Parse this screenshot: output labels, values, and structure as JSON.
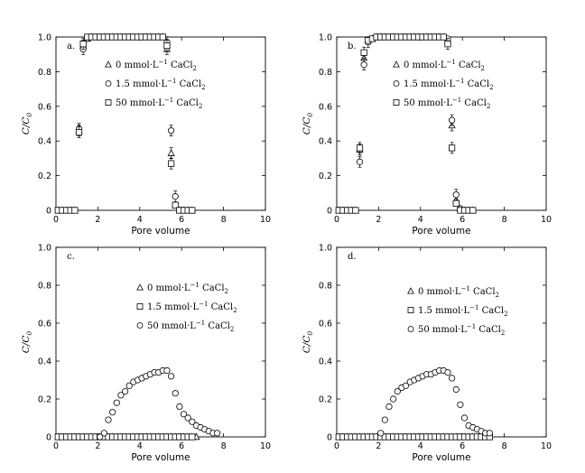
{
  "chart_data": [
    {
      "type": "scatter",
      "panel_label": "a.",
      "xlabel": "Pore volume",
      "ylabel": "C/C0",
      "ylabel_main": "C/C",
      "ylabel_sub": "0",
      "xlim": [
        0,
        10
      ],
      "ylim": [
        0,
        1.0
      ],
      "x_ticks": [
        0,
        2,
        4,
        6,
        8,
        10
      ],
      "y_ticks": [
        0,
        0.2,
        0.4,
        0.6,
        0.8,
        1.0
      ],
      "x_tick_labels": [
        "0",
        "2",
        "4",
        "6",
        "8",
        "10"
      ],
      "y_tick_labels": [
        "0",
        "0.2",
        "0.4",
        "0.6",
        "0.8",
        "1.0"
      ],
      "legend_position": "right-middle",
      "series": [
        {
          "name": "0 mmol·L⁻¹ CaCl₂",
          "legend_parts": [
            "0 mmol·L",
            "−1",
            " CaCl",
            "2"
          ],
          "marker": "triangle",
          "x": [
            0.1,
            0.3,
            0.5,
            0.7,
            0.9,
            1.1,
            1.3,
            1.5,
            1.7,
            1.9,
            2.1,
            2.3,
            2.5,
            2.7,
            2.9,
            3.1,
            3.3,
            3.5,
            3.7,
            3.9,
            4.1,
            4.3,
            4.5,
            4.7,
            4.9,
            5.1,
            5.3,
            5.5,
            5.7,
            5.9,
            6.1,
            6.3,
            6.5
          ],
          "y": [
            0,
            0,
            0,
            0,
            0,
            0.46,
            0.95,
            0.99,
            1.0,
            1.0,
            1.0,
            1.0,
            1.0,
            1.0,
            1.0,
            1.0,
            1.0,
            1.0,
            1.0,
            1.0,
            1.0,
            1.0,
            1.0,
            1.0,
            1.0,
            1.0,
            0.93,
            0.33,
            0.03,
            0,
            0,
            0,
            0
          ]
        },
        {
          "name": "1.5 mmol·L⁻¹ CaCl₂",
          "legend_parts": [
            "1.5 mmol·L",
            "−1",
            " CaCl",
            "2"
          ],
          "marker": "circle",
          "x": [
            0.1,
            0.3,
            0.5,
            0.7,
            0.9,
            1.1,
            1.3,
            1.5,
            1.7,
            1.9,
            2.1,
            2.3,
            2.5,
            2.7,
            2.9,
            3.1,
            3.3,
            3.5,
            3.7,
            3.9,
            4.1,
            4.3,
            4.5,
            4.7,
            4.9,
            5.1,
            5.3,
            5.5,
            5.7,
            5.9,
            6.1,
            6.3,
            6.5
          ],
          "y": [
            0,
            0,
            0,
            0,
            0,
            0.47,
            0.93,
            0.99,
            1.0,
            1.0,
            1.0,
            1.0,
            1.0,
            1.0,
            1.0,
            1.0,
            1.0,
            1.0,
            1.0,
            1.0,
            1.0,
            1.0,
            1.0,
            1.0,
            1.0,
            1.0,
            0.97,
            0.46,
            0.08,
            0,
            0,
            0,
            0
          ]
        },
        {
          "name": "50 mmol·L⁻¹ CaCl₂",
          "legend_parts": [
            "50 mmol·L",
            "−1",
            " CaCl",
            "2"
          ],
          "marker": "square",
          "x": [
            0.1,
            0.3,
            0.5,
            0.7,
            0.9,
            1.1,
            1.3,
            1.5,
            1.7,
            1.9,
            2.1,
            2.3,
            2.5,
            2.7,
            2.9,
            3.1,
            3.3,
            3.5,
            3.7,
            3.9,
            4.1,
            4.3,
            4.5,
            4.7,
            4.9,
            5.1,
            5.3,
            5.5,
            5.7,
            5.9,
            6.1,
            6.3,
            6.5
          ],
          "y": [
            0,
            0,
            0,
            0,
            0,
            0.45,
            0.96,
            1.0,
            1.0,
            1.0,
            1.0,
            1.0,
            1.0,
            1.0,
            1.0,
            1.0,
            1.0,
            1.0,
            1.0,
            1.0,
            1.0,
            1.0,
            1.0,
            1.0,
            1.0,
            1.0,
            0.95,
            0.27,
            0.03,
            0,
            0,
            0,
            0
          ]
        }
      ]
    },
    {
      "type": "scatter",
      "panel_label": "b.",
      "xlabel": "Pore volume",
      "ylabel": "C/C0",
      "ylabel_main": "C/C",
      "ylabel_sub": "0",
      "xlim": [
        0,
        10
      ],
      "ylim": [
        0,
        1.0
      ],
      "x_ticks": [
        0,
        2,
        4,
        6,
        8,
        10
      ],
      "y_ticks": [
        0,
        0.2,
        0.4,
        0.6,
        0.8,
        1.0
      ],
      "x_tick_labels": [
        "0",
        "2",
        "4",
        "6",
        "8",
        "10"
      ],
      "y_tick_labels": [
        "0",
        "0.2",
        "0.4",
        "0.6",
        "0.8",
        "1.0"
      ],
      "legend_position": "right-middle",
      "series": [
        {
          "name": "0 mmol·L⁻¹ CaCl₂",
          "legend_parts": [
            "0 mmol·L",
            "−1",
            " CaCl",
            "2"
          ],
          "marker": "triangle",
          "x": [
            0.1,
            0.3,
            0.5,
            0.7,
            0.9,
            1.1,
            1.3,
            1.5,
            1.7,
            1.9,
            2.1,
            2.3,
            2.5,
            2.7,
            2.9,
            3.1,
            3.3,
            3.5,
            3.7,
            3.9,
            4.1,
            4.3,
            4.5,
            4.7,
            4.9,
            5.1,
            5.3,
            5.5,
            5.7,
            5.9,
            6.1,
            6.3,
            6.5
          ],
          "y": [
            0,
            0,
            0,
            0,
            0,
            0.35,
            0.88,
            0.98,
            0.99,
            1.0,
            1.0,
            1.0,
            1.0,
            1.0,
            1.0,
            1.0,
            1.0,
            1.0,
            1.0,
            1.0,
            1.0,
            1.0,
            1.0,
            1.0,
            1.0,
            1.0,
            0.98,
            0.49,
            0.06,
            0.01,
            0,
            0,
            0
          ]
        },
        {
          "name": "1.5 mmol·L⁻¹ CaCl₂",
          "legend_parts": [
            "1.5 mmol·L",
            "−1",
            " CaCl",
            "2"
          ],
          "marker": "circle",
          "x": [
            0.1,
            0.3,
            0.5,
            0.7,
            0.9,
            1.1,
            1.3,
            1.5,
            1.7,
            1.9,
            2.1,
            2.3,
            2.5,
            2.7,
            2.9,
            3.1,
            3.3,
            3.5,
            3.7,
            3.9,
            4.1,
            4.3,
            4.5,
            4.7,
            4.9,
            5.1,
            5.3,
            5.5,
            5.7,
            5.9,
            6.1,
            6.3,
            6.5
          ],
          "y": [
            0,
            0,
            0,
            0,
            0,
            0.28,
            0.84,
            0.97,
            0.99,
            1.0,
            1.0,
            1.0,
            1.0,
            1.0,
            1.0,
            1.0,
            1.0,
            1.0,
            1.0,
            1.0,
            1.0,
            1.0,
            1.0,
            1.0,
            1.0,
            1.0,
            0.99,
            0.52,
            0.09,
            0.01,
            0,
            0,
            0
          ]
        },
        {
          "name": "50 mmol·L⁻¹ CaCl₂",
          "legend_parts": [
            "50 mmol·L",
            "−1",
            " CaCl",
            "2"
          ],
          "marker": "square",
          "x": [
            0.1,
            0.3,
            0.5,
            0.7,
            0.9,
            1.1,
            1.3,
            1.5,
            1.7,
            1.9,
            2.1,
            2.3,
            2.5,
            2.7,
            2.9,
            3.1,
            3.3,
            3.5,
            3.7,
            3.9,
            4.1,
            4.3,
            4.5,
            4.7,
            4.9,
            5.1,
            5.3,
            5.5,
            5.7,
            5.9,
            6.1,
            6.3,
            6.5
          ],
          "y": [
            0,
            0,
            0,
            0,
            0,
            0.36,
            0.91,
            0.98,
            0.99,
            1.0,
            1.0,
            1.0,
            1.0,
            1.0,
            1.0,
            1.0,
            1.0,
            1.0,
            1.0,
            1.0,
            1.0,
            1.0,
            1.0,
            1.0,
            1.0,
            1.0,
            0.96,
            0.36,
            0.04,
            0,
            0,
            0,
            0
          ]
        }
      ]
    },
    {
      "type": "scatter",
      "panel_label": "c.",
      "xlabel": "Pore volume",
      "ylabel": "C/C0",
      "ylabel_main": "C/C",
      "ylabel_sub": "0",
      "xlim": [
        0,
        10
      ],
      "ylim": [
        0,
        1.0
      ],
      "x_ticks": [
        0,
        2,
        4,
        6,
        8,
        10
      ],
      "y_ticks": [
        0,
        0.2,
        0.4,
        0.6,
        0.8,
        1.0
      ],
      "x_tick_labels": [
        "0",
        "2",
        "4",
        "6",
        "8",
        "10"
      ],
      "y_tick_labels": [
        "0",
        "0.2",
        "0.4",
        "0.6",
        "0.8",
        "1.0"
      ],
      "legend_position": "center",
      "series": [
        {
          "name": "0 mmol·L⁻¹ CaCl₂",
          "legend_parts": [
            "0 mmol·L",
            "−1",
            " CaCl",
            "2"
          ],
          "marker": "triangle",
          "x": [
            0.1,
            0.3,
            0.5,
            0.7,
            0.9,
            1.1,
            1.3,
            1.5,
            1.7,
            1.9,
            2.1,
            2.3,
            2.5,
            2.7,
            2.9,
            3.1,
            3.3,
            3.5,
            3.7,
            3.9,
            4.1,
            4.3,
            4.5,
            4.7,
            4.9,
            5.1,
            5.3,
            5.5,
            5.7,
            5.9,
            6.1,
            6.3,
            6.5,
            6.7
          ],
          "y": [
            0,
            0,
            0,
            0,
            0,
            0,
            0,
            0,
            0,
            0,
            0,
            0,
            0,
            0,
            0,
            0,
            0,
            0,
            0,
            0,
            0,
            0,
            0,
            0,
            0,
            0,
            0,
            0,
            0,
            0,
            0,
            0,
            0,
            0
          ]
        },
        {
          "name": "1.5 mmol·L⁻¹ CaCl₂",
          "legend_parts": [
            "1.5 mmol·L",
            "−1",
            " CaCl",
            "2"
          ],
          "marker": "square",
          "x": [
            0.1,
            0.3,
            0.5,
            0.7,
            0.9,
            1.1,
            1.3,
            1.5,
            1.7,
            1.9,
            2.1,
            2.3,
            2.5,
            2.7,
            2.9,
            3.1,
            3.3,
            3.5,
            3.7,
            3.9,
            4.1,
            4.3,
            4.5,
            4.7,
            4.9,
            5.1,
            5.3,
            5.5,
            5.7,
            5.9,
            6.1,
            6.3,
            6.5
          ],
          "y": [
            0,
            0,
            0,
            0,
            0,
            0,
            0,
            0,
            0,
            0,
            0,
            0,
            0,
            0,
            0,
            0,
            0,
            0,
            0,
            0,
            0,
            0,
            0,
            0,
            0,
            0,
            0,
            0,
            0,
            0,
            0,
            0,
            0
          ]
        },
        {
          "name": "50 mmol·L⁻¹ CaCl₂",
          "legend_parts": [
            "50 mmol·L",
            "−1",
            " CaCl",
            "2"
          ],
          "marker": "circle",
          "x": [
            2.1,
            2.3,
            2.5,
            2.7,
            2.9,
            3.1,
            3.3,
            3.5,
            3.7,
            3.9,
            4.1,
            4.3,
            4.5,
            4.7,
            4.9,
            5.1,
            5.3,
            5.5,
            5.7,
            5.9,
            6.1,
            6.3,
            6.5,
            6.7,
            6.9,
            7.1,
            7.3,
            7.5,
            7.7
          ],
          "y": [
            0.0,
            0.02,
            0.09,
            0.13,
            0.18,
            0.22,
            0.24,
            0.27,
            0.29,
            0.3,
            0.31,
            0.32,
            0.33,
            0.34,
            0.34,
            0.35,
            0.35,
            0.32,
            0.23,
            0.16,
            0.12,
            0.1,
            0.08,
            0.06,
            0.05,
            0.04,
            0.03,
            0.02,
            0.02
          ]
        }
      ]
    },
    {
      "type": "scatter",
      "panel_label": "d.",
      "xlabel": "Pore volume",
      "ylabel": "C/C0",
      "ylabel_main": "C/C",
      "ylabel_sub": "0",
      "xlim": [
        0,
        10
      ],
      "ylim": [
        0,
        1.0
      ],
      "x_ticks": [
        0,
        2,
        4,
        6,
        8,
        10
      ],
      "y_ticks": [
        0,
        0.2,
        0.4,
        0.6,
        0.8,
        1.0
      ],
      "x_tick_labels": [
        "0",
        "2",
        "4",
        "6",
        "8",
        "10"
      ],
      "y_tick_labels": [
        "0",
        "0.2",
        "0.4",
        "0.6",
        "0.8",
        "1.0"
      ],
      "legend_position": "center",
      "series": [
        {
          "name": "0 mmol·L⁻¹ CaCl₂",
          "legend_parts": [
            "0 mmol·L",
            "−1",
            " CaCl",
            "2"
          ],
          "marker": "triangle",
          "x": [
            0.1,
            0.3,
            0.5,
            0.7,
            0.9,
            1.1,
            1.3,
            1.5,
            1.7,
            1.9,
            2.1,
            2.3,
            2.5,
            2.7,
            2.9,
            3.1,
            3.3,
            3.5,
            3.7,
            3.9,
            4.1,
            4.3,
            4.5,
            4.7,
            4.9,
            5.1,
            5.3,
            5.5,
            5.7,
            5.9,
            6.1,
            6.3,
            6.5
          ],
          "y": [
            0,
            0,
            0,
            0,
            0,
            0,
            0,
            0,
            0,
            0,
            0,
            0,
            0,
            0,
            0,
            0,
            0,
            0,
            0,
            0,
            0,
            0,
            0,
            0,
            0,
            0,
            0,
            0,
            0,
            0,
            0,
            0,
            0
          ]
        },
        {
          "name": "1.5 mmol·L⁻¹ CaCl₂",
          "legend_parts": [
            "1.5 mmol·L",
            "−1",
            " CaCl",
            "2"
          ],
          "marker": "square",
          "x": [
            0.1,
            0.3,
            0.5,
            0.7,
            0.9,
            1.1,
            1.3,
            1.5,
            1.7,
            1.9,
            2.1,
            2.3,
            2.5,
            2.7,
            2.9,
            3.1,
            3.3,
            3.5,
            3.7,
            3.9,
            4.1,
            4.3,
            4.5,
            4.7,
            4.9,
            5.1,
            5.3,
            5.5,
            5.7,
            5.9,
            6.1,
            6.3,
            6.5,
            6.7,
            6.9,
            7.1,
            7.3
          ],
          "y": [
            0,
            0,
            0,
            0,
            0,
            0,
            0,
            0,
            0,
            0,
            0,
            0,
            0,
            0,
            0,
            0,
            0,
            0,
            0,
            0,
            0,
            0,
            0,
            0,
            0,
            0,
            0,
            0,
            0,
            0,
            0,
            0,
            0,
            0,
            0,
            0,
            0
          ]
        },
        {
          "name": "50 mmol·L⁻¹ CaCl₂",
          "legend_parts": [
            "50 mmol·L",
            "−1",
            " CaCl",
            "2"
          ],
          "marker": "circle",
          "x": [
            2.1,
            2.3,
            2.5,
            2.7,
            2.9,
            3.1,
            3.3,
            3.5,
            3.7,
            3.9,
            4.1,
            4.3,
            4.5,
            4.7,
            4.9,
            5.1,
            5.3,
            5.5,
            5.7,
            5.9,
            6.1,
            6.3,
            6.5,
            6.7,
            6.9,
            7.1,
            7.3
          ],
          "y": [
            0.02,
            0.09,
            0.16,
            0.2,
            0.24,
            0.26,
            0.27,
            0.29,
            0.3,
            0.31,
            0.32,
            0.33,
            0.33,
            0.34,
            0.35,
            0.35,
            0.34,
            0.31,
            0.25,
            0.17,
            0.1,
            0.06,
            0.05,
            0.04,
            0.03,
            0.02,
            0.02
          ]
        }
      ]
    }
  ]
}
